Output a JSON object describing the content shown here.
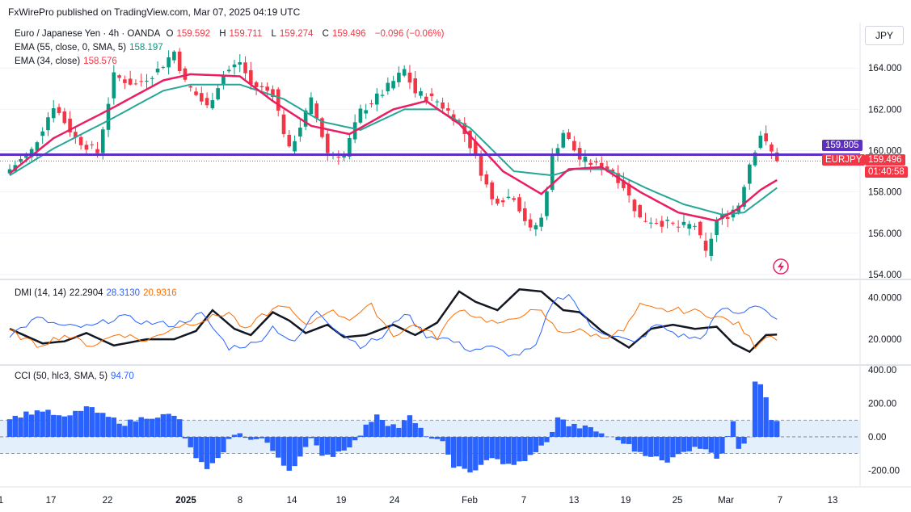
{
  "header": {
    "text": "FxWirePro published on TradingView.com, Mar 07, 2025 04:19 UTC"
  },
  "currency_button": "JPY",
  "legend": {
    "symbol": "Euro / Japanese Yen · 4h · OANDA",
    "o_label": "O",
    "o_val": "159.592",
    "h_label": "H",
    "h_val": "159.711",
    "l_label": "L",
    "l_val": "159.274",
    "c_label": "C",
    "c_val": "159.496",
    "change": "−0.096 (−0.06%)",
    "ema55": "EMA (55, close, 0, SMA, 5)",
    "ema55_val": "158.197",
    "ema34": "EMA (34, close)",
    "ema34_val": "158.576",
    "dmi": "DMI (14, 14)",
    "dmi_adx": "22.2904",
    "dmi_plus": "28.3130",
    "dmi_minus": "20.9316",
    "cci": "CCI (50, hlc3, SMA, 5)",
    "cci_val": "94.70"
  },
  "tags": {
    "level_price": "159.805",
    "symbol_tag": "EURJPY",
    "last_price": "159.496",
    "countdown": "01:40:58"
  },
  "colors": {
    "up": "#089981",
    "down": "#f23645",
    "ema34": "#e91e63",
    "ema55": "#26a69a",
    "level": "#5c2fc2",
    "adx": "#131722",
    "di_plus": "#2962ff",
    "di_minus": "#ff6d00",
    "cci": "#2962ff"
  },
  "chart_data": [
    {
      "type": "candlestick",
      "title": "Euro / Japanese Yen · 4h · OANDA",
      "ylim": [
        153.8,
        166.2
      ],
      "y_ticks": [
        "164.000",
        "162.000",
        "160.000",
        "158.000",
        "156.000",
        "154.000"
      ],
      "x_ticks": [
        "1",
        "17",
        "22",
        "2025",
        "8",
        "14",
        "19",
        "24",
        "Feb",
        "7",
        "13",
        "19",
        "25",
        "Mar",
        "7",
        "13"
      ],
      "horizontal_level": 159.805,
      "last_price": 159.496,
      "waypoints_close": [
        [
          0,
          159.1
        ],
        [
          4,
          160.0
        ],
        [
          8,
          162.2
        ],
        [
          12,
          160.6
        ],
        [
          16,
          159.9
        ],
        [
          19,
          163.6
        ],
        [
          23,
          163.2
        ],
        [
          27,
          163.9
        ],
        [
          30,
          164.8
        ],
        [
          32,
          163.3
        ],
        [
          36,
          162.1
        ],
        [
          39,
          163.7
        ],
        [
          42,
          164.3
        ],
        [
          44,
          163.2
        ],
        [
          48,
          162.8
        ],
        [
          51,
          160.0
        ],
        [
          55,
          162.4
        ],
        [
          58,
          159.9
        ],
        [
          61,
          159.8
        ],
        [
          64,
          161.9
        ],
        [
          68,
          162.8
        ],
        [
          72,
          163.9
        ],
        [
          74,
          162.8
        ],
        [
          78,
          162.4
        ],
        [
          82,
          161.4
        ],
        [
          85,
          159.7
        ],
        [
          88,
          157.6
        ],
        [
          92,
          157.8
        ],
        [
          95,
          156.1
        ],
        [
          97,
          156.7
        ],
        [
          99,
          159.7
        ],
        [
          101,
          160.9
        ],
        [
          104,
          159.6
        ],
        [
          107,
          159.3
        ],
        [
          110,
          159.0
        ],
        [
          112,
          158.3
        ],
        [
          115,
          156.7
        ],
        [
          118,
          156.6
        ],
        [
          122,
          156.3
        ],
        [
          125,
          156.4
        ],
        [
          127,
          155.0
        ],
        [
          129,
          156.6
        ],
        [
          131,
          156.9
        ],
        [
          133,
          157.4
        ],
        [
          135,
          159.4
        ],
        [
          137,
          160.8
        ],
        [
          138,
          160.3
        ],
        [
          140,
          159.5
        ]
      ],
      "ema34_waypoints": [
        [
          0,
          158.9
        ],
        [
          8,
          160.6
        ],
        [
          19,
          162.1
        ],
        [
          28,
          163.4
        ],
        [
          33,
          163.7
        ],
        [
          42,
          163.6
        ],
        [
          48,
          162.4
        ],
        [
          55,
          161.2
        ],
        [
          62,
          160.8
        ],
        [
          70,
          162.0
        ],
        [
          76,
          162.4
        ],
        [
          82,
          161.3
        ],
        [
          90,
          159.0
        ],
        [
          97,
          157.9
        ],
        [
          102,
          159.1
        ],
        [
          108,
          159.2
        ],
        [
          115,
          158.0
        ],
        [
          122,
          157.0
        ],
        [
          129,
          156.6
        ],
        [
          133,
          157.2
        ],
        [
          137,
          158.1
        ],
        [
          140,
          158.576
        ]
      ],
      "ema55_waypoints": [
        [
          0,
          158.8
        ],
        [
          8,
          160.1
        ],
        [
          19,
          161.6
        ],
        [
          28,
          162.9
        ],
        [
          33,
          163.2
        ],
        [
          42,
          163.2
        ],
        [
          50,
          162.5
        ],
        [
          57,
          161.4
        ],
        [
          64,
          161.0
        ],
        [
          72,
          162.0
        ],
        [
          78,
          162.0
        ],
        [
          84,
          161.1
        ],
        [
          92,
          159.0
        ],
        [
          99,
          158.8
        ],
        [
          103,
          159.1
        ],
        [
          109,
          159.1
        ],
        [
          116,
          158.2
        ],
        [
          123,
          157.4
        ],
        [
          130,
          156.9
        ],
        [
          134,
          157.0
        ],
        [
          137,
          157.6
        ],
        [
          140,
          158.197
        ]
      ]
    },
    {
      "type": "line",
      "title": "DMI (14, 14)",
      "ylim": [
        8,
        48
      ],
      "y_ticks": [
        "40.0000",
        "20.0000"
      ],
      "series": [
        {
          "name": "ADX",
          "value": 22.2904,
          "waypoints": [
            [
              0,
              25
            ],
            [
              6,
              18
            ],
            [
              10,
              19
            ],
            [
              14,
              23
            ],
            [
              19,
              17
            ],
            [
              25,
              20
            ],
            [
              30,
              20
            ],
            [
              34,
              24
            ],
            [
              37,
              34
            ],
            [
              41,
              25
            ],
            [
              44,
              22
            ],
            [
              48,
              33
            ],
            [
              51,
              29
            ],
            [
              54,
              23
            ],
            [
              58,
              27
            ],
            [
              61,
              21
            ],
            [
              65,
              22
            ],
            [
              70,
              27
            ],
            [
              74,
              22
            ],
            [
              78,
              28
            ],
            [
              82,
              43
            ],
            [
              85,
              38
            ],
            [
              89,
              34
            ],
            [
              93,
              44
            ],
            [
              97,
              43
            ],
            [
              101,
              34
            ],
            [
              104,
              33
            ],
            [
              108,
              24
            ],
            [
              113,
              16
            ],
            [
              117,
              25
            ],
            [
              121,
              27
            ],
            [
              125,
              25
            ],
            [
              129,
              26
            ],
            [
              132,
              18
            ],
            [
              135,
              14
            ],
            [
              138,
              22
            ],
            [
              140,
              22.29
            ]
          ]
        },
        {
          "name": "+DI",
          "value": 28.313,
          "waypoints": [
            [
              0,
              22
            ],
            [
              5,
              30
            ],
            [
              10,
              26
            ],
            [
              15,
              26
            ],
            [
              20,
              31
            ],
            [
              25,
              28
            ],
            [
              30,
              27
            ],
            [
              35,
              32
            ],
            [
              40,
              16
            ],
            [
              45,
              18
            ],
            [
              48,
              26
            ],
            [
              52,
              18
            ],
            [
              56,
              34
            ],
            [
              60,
              24
            ],
            [
              64,
              17
            ],
            [
              68,
              21
            ],
            [
              72,
              33
            ],
            [
              76,
              22
            ],
            [
              80,
              20
            ],
            [
              84,
              15
            ],
            [
              88,
              16
            ],
            [
              92,
              12
            ],
            [
              96,
              16
            ],
            [
              99,
              38
            ],
            [
              102,
              42
            ],
            [
              106,
              26
            ],
            [
              110,
              22
            ],
            [
              114,
              18
            ],
            [
              118,
              27
            ],
            [
              122,
              22
            ],
            [
              126,
              20
            ],
            [
              130,
              35
            ],
            [
              133,
              32
            ],
            [
              136,
              37
            ],
            [
              138,
              34
            ],
            [
              140,
              28.31
            ]
          ]
        },
        {
          "name": "-DI",
          "value": 20.9316,
          "waypoints": [
            [
              0,
              24
            ],
            [
              5,
              17
            ],
            [
              10,
              22
            ],
            [
              15,
              17
            ],
            [
              20,
              23
            ],
            [
              25,
              19
            ],
            [
              30,
              26
            ],
            [
              35,
              29
            ],
            [
              40,
              33
            ],
            [
              43,
              24
            ],
            [
              46,
              31
            ],
            [
              50,
              37
            ],
            [
              54,
              26
            ],
            [
              58,
              34
            ],
            [
              62,
              30
            ],
            [
              66,
              36
            ],
            [
              70,
              22
            ],
            [
              74,
              27
            ],
            [
              78,
              21
            ],
            [
              82,
              35
            ],
            [
              86,
              30
            ],
            [
              90,
              27
            ],
            [
              94,
              33
            ],
            [
              97,
              33
            ],
            [
              100,
              24
            ],
            [
              104,
              24
            ],
            [
              108,
              21
            ],
            [
              112,
              24
            ],
            [
              115,
              36
            ],
            [
              118,
              34
            ],
            [
              122,
              34
            ],
            [
              126,
              33
            ],
            [
              130,
              30
            ],
            [
              133,
              27
            ],
            [
              136,
              17
            ],
            [
              138,
              22
            ],
            [
              140,
              20.93
            ]
          ]
        }
      ]
    },
    {
      "type": "bar",
      "title": "CCI (50, hlc3, SMA, 5)",
      "ylim": [
        -290,
        420
      ],
      "y_ticks": [
        "400.00",
        "200.00",
        "0.00",
        "-200.00"
      ],
      "band": [
        -100,
        100
      ],
      "last_value": 94.7,
      "waypoints": [
        [
          0,
          110
        ],
        [
          3,
          140
        ],
        [
          6,
          160
        ],
        [
          10,
          110
        ],
        [
          14,
          180
        ],
        [
          17,
          130
        ],
        [
          21,
          80
        ],
        [
          25,
          120
        ],
        [
          29,
          130
        ],
        [
          31,
          110
        ],
        [
          32,
          -20
        ],
        [
          34,
          -120
        ],
        [
          36,
          -200
        ],
        [
          38,
          -140
        ],
        [
          40,
          -20
        ],
        [
          42,
          30
        ],
        [
          44,
          -20
        ],
        [
          46,
          -10
        ],
        [
          49,
          -120
        ],
        [
          51,
          -200
        ],
        [
          53,
          -120
        ],
        [
          55,
          -20
        ],
        [
          57,
          -100
        ],
        [
          59,
          -110
        ],
        [
          61,
          -70
        ],
        [
          63,
          -30
        ],
        [
          65,
          60
        ],
        [
          67,
          140
        ],
        [
          69,
          80
        ],
        [
          71,
          60
        ],
        [
          73,
          120
        ],
        [
          75,
          40
        ],
        [
          77,
          -10
        ],
        [
          79,
          -40
        ],
        [
          81,
          -170
        ],
        [
          84,
          -220
        ],
        [
          86,
          -160
        ],
        [
          88,
          -120
        ],
        [
          90,
          -170
        ],
        [
          92,
          -160
        ],
        [
          94,
          -150
        ],
        [
          96,
          -80
        ],
        [
          98,
          -40
        ],
        [
          100,
          120
        ],
        [
          102,
          70
        ],
        [
          104,
          60
        ],
        [
          106,
          50
        ],
        [
          108,
          20
        ],
        [
          110,
          -10
        ],
        [
          112,
          -30
        ],
        [
          114,
          -80
        ],
        [
          117,
          -110
        ],
        [
          120,
          -160
        ],
        [
          122,
          -90
        ],
        [
          125,
          -70
        ],
        [
          127,
          -60
        ],
        [
          129,
          -120
        ],
        [
          130,
          -100
        ],
        [
          131,
          -10
        ],
        [
          132,
          100
        ],
        [
          133,
          -60
        ],
        [
          134,
          -30
        ],
        [
          135,
          10
        ],
        [
          136,
          340
        ],
        [
          137,
          320
        ],
        [
          138,
          250
        ],
        [
          139,
          110
        ],
        [
          140,
          94.7
        ]
      ]
    }
  ]
}
